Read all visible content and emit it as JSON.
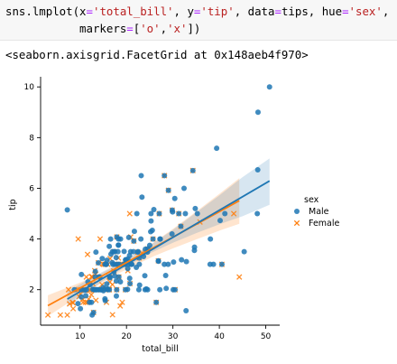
{
  "code": {
    "line1": {
      "prefix": "sns.lmplot(x",
      "eq1": "=",
      "s1": "'total_bill'",
      "mid1": ", y",
      "eq2": "=",
      "s2": "'tip'",
      "mid2": ", data",
      "eq3": "=",
      "mid3": "tips, hue",
      "eq4": "=",
      "s3": "'sex'",
      "end": ","
    },
    "line2": {
      "indent": "           markers",
      "eq": "=",
      "open": "[",
      "s1": "'o'",
      "comma": ",",
      "s2": "'x'",
      "close": "])"
    }
  },
  "output_repr": "<seaborn.axisgrid.FacetGrid at 0x148aeb4f970>",
  "chart_data": {
    "type": "scatter",
    "title": "",
    "xlabel": "total_bill",
    "ylabel": "tip",
    "xlim": [
      1.5,
      53
    ],
    "ylim": [
      0.6,
      10.4
    ],
    "xticks": [
      10,
      20,
      30,
      40,
      50
    ],
    "yticks": [
      2,
      4,
      6,
      8,
      10
    ],
    "grid": false,
    "legend": {
      "title": "sex",
      "placement": "center-right outside",
      "entries": [
        {
          "label": "Male",
          "marker": "o",
          "color": "#1f77b4"
        },
        {
          "label": "Female",
          "marker": "x",
          "color": "#ff7f0e"
        }
      ]
    },
    "series": [
      {
        "name": "Male",
        "marker": "o",
        "color": "#1f77b4",
        "regression": {
          "x": [
            7.25,
            50.81
          ],
          "y": [
            1.63,
            6.29
          ]
        },
        "ci_band": [
          [
            7.25,
            1.32,
            1.93
          ],
          [
            15,
            2.35,
            2.72
          ],
          [
            20,
            2.92,
            3.2
          ],
          [
            25,
            3.43,
            3.75
          ],
          [
            30,
            3.85,
            4.36
          ],
          [
            35,
            4.23,
            5.04
          ],
          [
            40,
            4.58,
            5.72
          ],
          [
            45,
            4.9,
            6.44
          ],
          [
            50.81,
            5.35,
            7.18
          ]
        ],
        "points": [
          [
            7.25,
            5.15
          ],
          [
            8.77,
            2.0
          ],
          [
            9.55,
            1.45
          ],
          [
            10.07,
            1.25
          ],
          [
            10.33,
            2.0
          ],
          [
            10.27,
            1.71
          ],
          [
            10.29,
            2.6
          ],
          [
            11.02,
            1.98
          ],
          [
            11.24,
            1.76
          ],
          [
            11.38,
            2.0
          ],
          [
            11.69,
            2.31
          ],
          [
            12.03,
            1.5
          ],
          [
            12.16,
            2.2
          ],
          [
            12.46,
            1.5
          ],
          [
            12.6,
            1.0
          ],
          [
            12.74,
            2.01
          ],
          [
            12.9,
            1.1
          ],
          [
            13.0,
            2.0
          ],
          [
            13.13,
            2.0
          ],
          [
            13.27,
            2.5
          ],
          [
            13.28,
            2.72
          ],
          [
            13.37,
            2.0
          ],
          [
            13.42,
            3.48
          ],
          [
            13.51,
            2.0
          ],
          [
            13.81,
            2.0
          ],
          [
            13.94,
            3.06
          ],
          [
            14.07,
            2.5
          ],
          [
            14.15,
            2.0
          ],
          [
            14.26,
            2.5
          ],
          [
            14.48,
            2.0
          ],
          [
            14.52,
            2.0
          ],
          [
            14.78,
            3.23
          ],
          [
            15.01,
            2.09
          ],
          [
            15.04,
            1.96
          ],
          [
            15.36,
            1.64
          ],
          [
            15.38,
            3.0
          ],
          [
            15.42,
            1.57
          ],
          [
            15.48,
            2.02
          ],
          [
            15.53,
            3.0
          ],
          [
            15.69,
            3.0
          ],
          [
            15.77,
            2.23
          ],
          [
            15.81,
            3.16
          ],
          [
            15.98,
            2.03
          ],
          [
            16.0,
            2.0
          ],
          [
            16.29,
            3.71
          ],
          [
            16.31,
            2.0
          ],
          [
            16.4,
            2.5
          ],
          [
            16.45,
            2.47
          ],
          [
            16.58,
            4.0
          ],
          [
            16.66,
            3.4
          ],
          [
            16.93,
            3.07
          ],
          [
            16.97,
            3.5
          ],
          [
            17.07,
            3.0
          ],
          [
            17.29,
            2.71
          ],
          [
            17.31,
            3.5
          ],
          [
            17.46,
            2.54
          ],
          [
            17.47,
            3.5
          ],
          [
            17.51,
            3.0
          ],
          [
            17.78,
            3.27
          ],
          [
            17.81,
            2.34
          ],
          [
            17.82,
            1.75
          ],
          [
            17.89,
            2.0
          ],
          [
            17.92,
            4.08
          ],
          [
            18.04,
            3.0
          ],
          [
            18.15,
            3.5
          ],
          [
            18.24,
            3.76
          ],
          [
            18.28,
            4.0
          ],
          [
            18.29,
            3.76
          ],
          [
            18.35,
            2.5
          ],
          [
            18.43,
            3.0
          ],
          [
            18.69,
            2.31
          ],
          [
            18.71,
            4.0
          ],
          [
            19.44,
            3.0
          ],
          [
            19.49,
            3.51
          ],
          [
            19.65,
            3.0
          ],
          [
            19.77,
            2.0
          ],
          [
            19.81,
            3.18
          ],
          [
            19.82,
            3.18
          ],
          [
            20.08,
            3.15
          ],
          [
            20.23,
            2.01
          ],
          [
            20.27,
            2.83
          ],
          [
            20.29,
            3.21
          ],
          [
            20.45,
            3.0
          ],
          [
            20.49,
            4.06
          ],
          [
            20.65,
            3.35
          ],
          [
            20.69,
            2.45
          ],
          [
            20.76,
            2.24
          ],
          [
            20.9,
            3.5
          ],
          [
            21.01,
            3.0
          ],
          [
            21.16,
            3.0
          ],
          [
            21.5,
            3.5
          ],
          [
            21.58,
            3.92
          ],
          [
            21.7,
            4.3
          ],
          [
            22.12,
            2.88
          ],
          [
            22.23,
            5.0
          ],
          [
            22.42,
            3.48
          ],
          [
            22.49,
            3.5
          ],
          [
            22.67,
            2.0
          ],
          [
            22.75,
            3.25
          ],
          [
            22.76,
            3.0
          ],
          [
            22.82,
            2.18
          ],
          [
            23.1,
            4.0
          ],
          [
            23.17,
            6.5
          ],
          [
            23.33,
            5.65
          ],
          [
            23.68,
            3.31
          ],
          [
            23.95,
            2.55
          ],
          [
            24.01,
            2.0
          ],
          [
            24.06,
            3.6
          ],
          [
            24.27,
            2.03
          ],
          [
            24.52,
            3.48
          ],
          [
            24.55,
            2.0
          ],
          [
            24.59,
            3.61
          ],
          [
            25.0,
            3.75
          ],
          [
            25.21,
            4.29
          ],
          [
            25.28,
            5.0
          ],
          [
            25.29,
            4.71
          ],
          [
            25.56,
            4.34
          ],
          [
            25.71,
            4.0
          ],
          [
            25.89,
            5.16
          ],
          [
            26.41,
            1.5
          ],
          [
            26.86,
            3.14
          ],
          [
            26.88,
            3.12
          ],
          [
            27.05,
            5.0
          ],
          [
            27.18,
            2.0
          ],
          [
            27.2,
            4.0
          ],
          [
            27.28,
            4.0
          ],
          [
            28.15,
            3.0
          ],
          [
            28.17,
            6.5
          ],
          [
            28.44,
            2.56
          ],
          [
            28.55,
            2.05
          ],
          [
            28.97,
            3.0
          ],
          [
            29.03,
            5.92
          ],
          [
            29.8,
            4.2
          ],
          [
            29.85,
            5.14
          ],
          [
            29.93,
            5.07
          ],
          [
            30.06,
            2.0
          ],
          [
            30.14,
            3.09
          ],
          [
            30.4,
            5.6
          ],
          [
            30.46,
            2.0
          ],
          [
            31.27,
            5.0
          ],
          [
            31.71,
            4.5
          ],
          [
            31.85,
            3.18
          ],
          [
            32.4,
            6.0
          ],
          [
            32.68,
            5.0
          ],
          [
            32.9,
            3.11
          ],
          [
            32.83,
            1.17
          ],
          [
            34.3,
            6.7
          ],
          [
            34.63,
            3.55
          ],
          [
            34.65,
            3.68
          ],
          [
            34.81,
            5.2
          ],
          [
            35.26,
            5.0
          ],
          [
            38.01,
            3.0
          ],
          [
            38.07,
            4.0
          ],
          [
            38.73,
            3.0
          ],
          [
            39.42,
            7.58
          ],
          [
            40.17,
            4.73
          ],
          [
            40.55,
            3.0
          ],
          [
            41.19,
            5.0
          ],
          [
            45.35,
            3.5
          ],
          [
            48.17,
            5.0
          ],
          [
            48.27,
            6.73
          ],
          [
            48.33,
            9.0
          ],
          [
            50.81,
            10.0
          ]
        ]
      },
      {
        "name": "Female",
        "marker": "x",
        "color": "#ff7f0e",
        "regression": {
          "x": [
            3.07,
            44.3
          ],
          "y": [
            1.37,
            5.51
          ]
        },
        "ci_band": [
          [
            3.07,
            0.95,
            1.78
          ],
          [
            10,
            1.78,
            2.28
          ],
          [
            15,
            2.3,
            2.68
          ],
          [
            18,
            2.62,
            2.97
          ],
          [
            22,
            2.98,
            3.42
          ],
          [
            26,
            3.33,
            3.88
          ],
          [
            30,
            3.63,
            4.4
          ],
          [
            35,
            3.98,
            5.08
          ],
          [
            40,
            4.33,
            5.78
          ],
          [
            44.3,
            4.6,
            6.4
          ]
        ],
        "points": [
          [
            3.07,
            1.0
          ],
          [
            5.75,
            1.0
          ],
          [
            7.25,
            1.0
          ],
          [
            7.51,
            2.0
          ],
          [
            7.74,
            1.44
          ],
          [
            8.35,
            1.5
          ],
          [
            8.51,
            1.25
          ],
          [
            8.52,
            1.48
          ],
          [
            9.6,
            4.0
          ],
          [
            9.68,
            2.0
          ],
          [
            9.78,
            1.73
          ],
          [
            10.07,
            1.83
          ],
          [
            10.09,
            2.0
          ],
          [
            10.34,
            2.0
          ],
          [
            10.59,
            1.61
          ],
          [
            10.63,
            2.0
          ],
          [
            10.65,
            1.5
          ],
          [
            11.17,
            1.5
          ],
          [
            11.35,
            2.5
          ],
          [
            11.59,
            1.5
          ],
          [
            11.61,
            3.39
          ],
          [
            11.87,
            1.63
          ],
          [
            12.26,
            2.0
          ],
          [
            12.43,
            1.8
          ],
          [
            12.48,
            2.52
          ],
          [
            12.54,
            2.5
          ],
          [
            12.66,
            2.5
          ],
          [
            12.76,
            2.23
          ],
          [
            12.9,
            1.1
          ],
          [
            13.0,
            2.0
          ],
          [
            13.16,
            2.75
          ],
          [
            13.39,
            2.61
          ],
          [
            13.42,
            1.58
          ],
          [
            13.51,
            2.0
          ],
          [
            13.94,
            3.06
          ],
          [
            14.31,
            4.0
          ],
          [
            14.73,
            2.2
          ],
          [
            14.83,
            3.02
          ],
          [
            15.06,
            3.0
          ],
          [
            15.38,
            3.0
          ],
          [
            15.69,
            1.5
          ],
          [
            15.98,
            3.0
          ],
          [
            16.21,
            2.0
          ],
          [
            16.27,
            2.5
          ],
          [
            16.32,
            2.0
          ],
          [
            16.43,
            2.3
          ],
          [
            16.47,
            3.23
          ],
          [
            16.99,
            1.01
          ],
          [
            17.26,
            2.74
          ],
          [
            17.31,
            3.5
          ],
          [
            17.51,
            3.0
          ],
          [
            17.89,
            2.0
          ],
          [
            18.26,
            3.25
          ],
          [
            18.29,
            3.0
          ],
          [
            18.64,
            1.36
          ],
          [
            18.78,
            3.0
          ],
          [
            19.08,
            1.5
          ],
          [
            19.77,
            2.0
          ],
          [
            20.29,
            2.75
          ],
          [
            20.69,
            5.0
          ],
          [
            20.92,
            4.08
          ],
          [
            22.75,
            3.25
          ],
          [
            23.33,
            3.45
          ],
          [
            24.59,
            3.61
          ],
          [
            25.71,
            4.0
          ],
          [
            26.41,
            1.5
          ],
          [
            26.86,
            3.14
          ],
          [
            27.05,
            5.0
          ],
          [
            28.17,
            6.5
          ],
          [
            29.03,
            5.92
          ],
          [
            29.85,
            5.14
          ],
          [
            30.46,
            2.0
          ],
          [
            31.27,
            5.0
          ],
          [
            31.71,
            4.5
          ],
          [
            34.3,
            6.7
          ],
          [
            35.83,
            4.67
          ],
          [
            40.55,
            3.0
          ],
          [
            43.11,
            5.0
          ],
          [
            44.3,
            2.5
          ],
          [
            16.97,
            2.2
          ],
          [
            12.02,
            1.97
          ],
          [
            17.92,
            4.08
          ],
          [
            21.58,
            3.92
          ],
          [
            14.52,
            2.0
          ],
          [
            22.42,
            3.48
          ],
          [
            11.02,
            1.98
          ],
          [
            20.76,
            2.24
          ],
          [
            15.48,
            2.02
          ],
          [
            18.35,
            2.5
          ],
          [
            19.44,
            3.0
          ]
        ]
      }
    ]
  }
}
